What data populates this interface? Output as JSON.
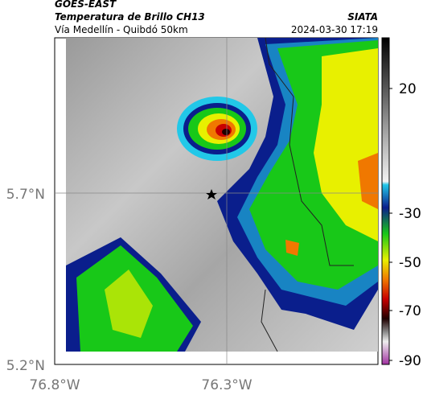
{
  "header": {
    "source": "GOES-EAST",
    "product": "Temperatura de Brillo CH13",
    "region": "Vía Medellín - Quibdó 50km",
    "agency": "SIATA",
    "timestamp": "2024-03-30 17:19"
  },
  "map": {
    "y_tick_labels": [
      "5.7°N",
      "5.2°N"
    ],
    "x_tick_labels": [
      "76.8°W",
      "76.3°W"
    ]
  },
  "colorbar": {
    "tick_labels": [
      "20",
      "-30",
      "-50",
      "-70",
      "-90"
    ]
  }
}
